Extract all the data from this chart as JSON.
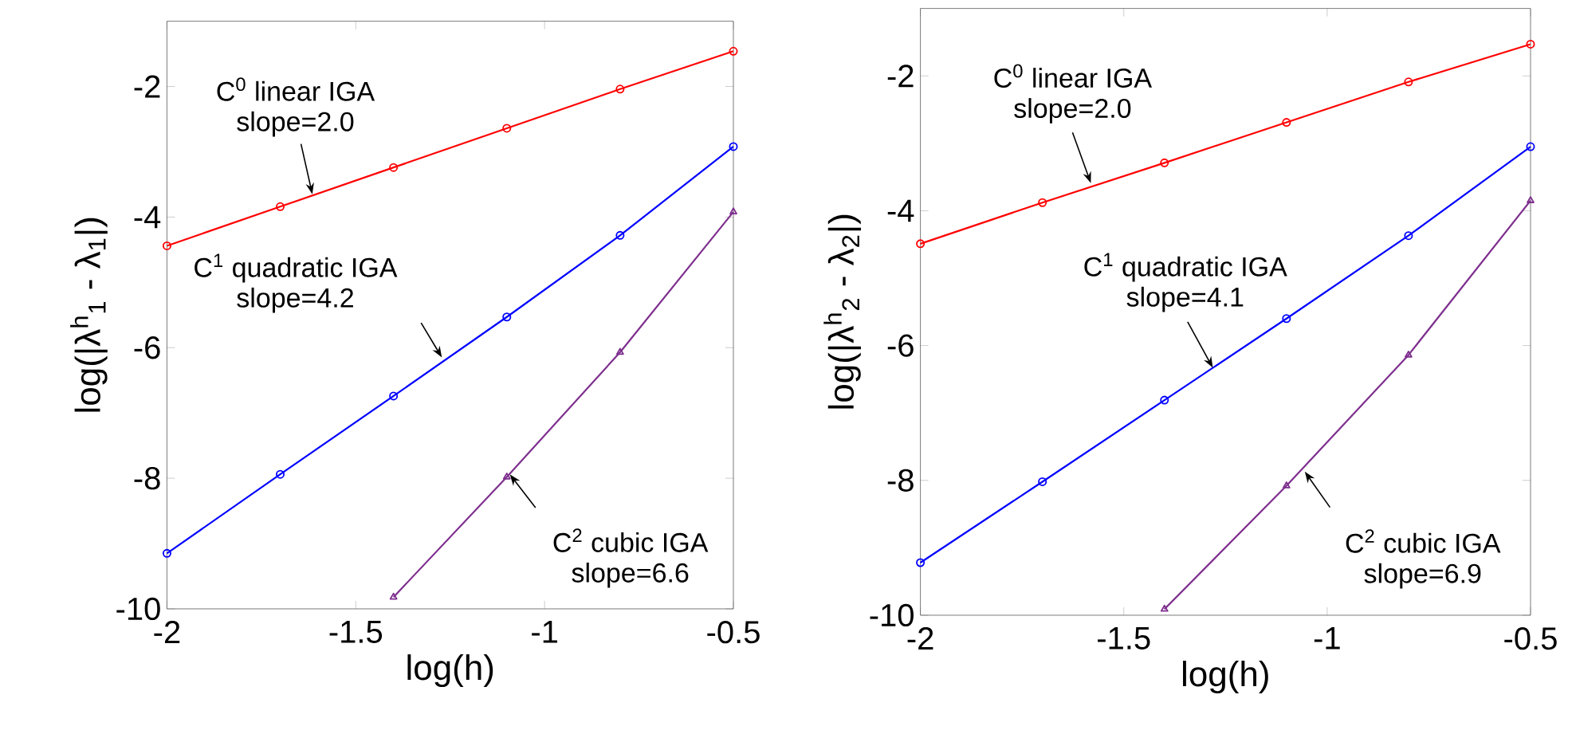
{
  "chart_data": [
    {
      "type": "line",
      "xlabel": "log(h)",
      "ylabel": "log(|λ$^{h}$$_{1}$ - λ$_{1}$|)",
      "xlim": [
        -2,
        -0.5
      ],
      "ylim": [
        -10,
        -1
      ],
      "xticks": [
        -2,
        -1.5,
        -1,
        -0.5
      ],
      "yticks": [
        -10,
        -8,
        -6,
        -4,
        -2
      ],
      "series": [
        {
          "color": "#ff0000",
          "marker": "circle",
          "x": [
            -2,
            -1.7,
            -1.4,
            -1.1,
            -0.8,
            -0.5
          ],
          "values": [
            -4.44,
            -3.84,
            -3.24,
            -2.64,
            -2.04,
            -1.46
          ]
        },
        {
          "color": "#0000ff",
          "marker": "circle",
          "x": [
            -2,
            -1.7,
            -1.4,
            -1.1,
            -0.8,
            -0.5
          ],
          "values": [
            -9.15,
            -7.94,
            -6.74,
            -5.53,
            -4.28,
            -2.92
          ]
        },
        {
          "color": "#7e2f8e",
          "marker": "triangle",
          "x": [
            -1.4,
            -1.1,
            -0.8,
            -0.5
          ],
          "values": [
            -9.82,
            -7.98,
            -6.07,
            -3.92
          ]
        }
      ],
      "annotations": [
        {
          "text": "C$^{0}$ linear IGA slope=2.0",
          "x": -1.615,
          "y": -3.65
        },
        {
          "text": "C$^{1}$ quadratic IGA slope=4.2",
          "x": -1.272,
          "y": -6.15
        },
        {
          "text": "C$^{2}$ cubic IGA slope=6.6",
          "x": -1.092,
          "y": -7.94
        }
      ]
    },
    {
      "type": "line",
      "xlabel": "log(h)",
      "ylabel": "log(|λ$^{h}$$_{2}$ - λ$_{2}$|)",
      "xlim": [
        -2,
        -0.5
      ],
      "ylim": [
        -10,
        -1
      ],
      "xticks": [
        -2,
        -1.5,
        -1,
        -0.5
      ],
      "yticks": [
        -10,
        -8,
        -6,
        -4,
        -2
      ],
      "series": [
        {
          "color": "#ff0000",
          "marker": "circle",
          "x": [
            -2,
            -1.7,
            -1.4,
            -1.1,
            -0.8,
            -0.5
          ],
          "values": [
            -4.49,
            -3.88,
            -3.29,
            -2.69,
            -2.09,
            -1.53
          ]
        },
        {
          "color": "#0000ff",
          "marker": "circle",
          "x": [
            -2,
            -1.7,
            -1.4,
            -1.1,
            -0.8,
            -0.5
          ],
          "values": [
            -9.22,
            -8.02,
            -6.81,
            -5.6,
            -4.37,
            -3.05
          ]
        },
        {
          "color": "#7e2f8e",
          "marker": "triangle",
          "x": [
            -1.4,
            -1.1,
            -0.8,
            -0.5
          ],
          "values": [
            -9.91,
            -8.08,
            -6.14,
            -3.85
          ]
        }
      ],
      "annotations": [
        {
          "text": "C$^{0}$ linear IGA slope=2.0",
          "x": -1.581,
          "y": -3.59
        },
        {
          "text": "C$^{1}$ quadratic IGA slope=4.1",
          "x": -1.281,
          "y": -6.33
        },
        {
          "text": "C$^{2}$ cubic IGA slope=6.9",
          "x": -1.055,
          "y": -7.87
        }
      ]
    }
  ]
}
